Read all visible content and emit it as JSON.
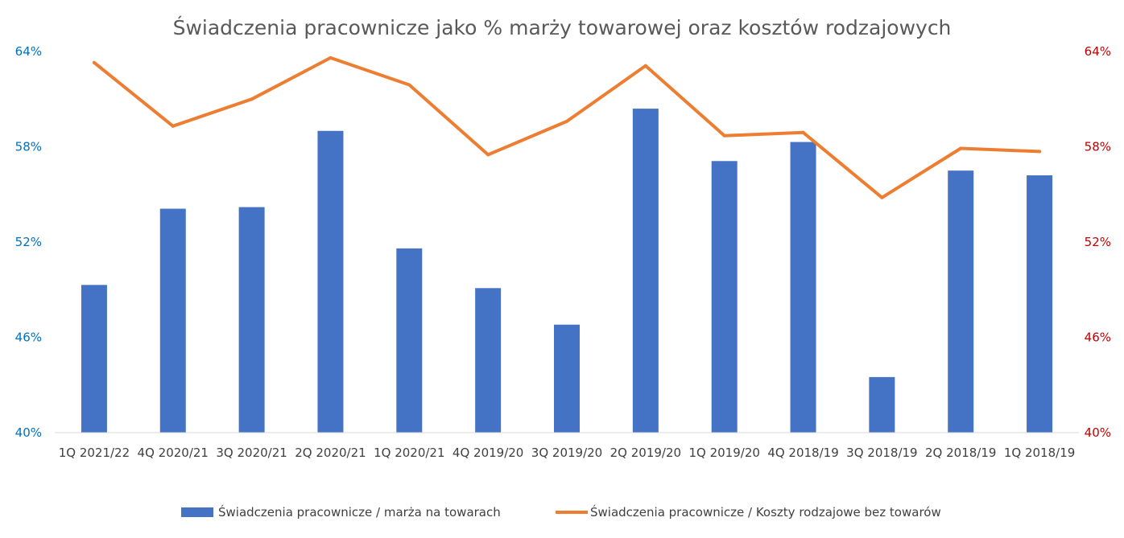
{
  "chart_data": {
    "type": "bar",
    "title": "Świadczenia pracownicze jako % marży towarowej oraz kosztów rodzajowych",
    "categories": [
      "1Q 2021/22",
      "4Q 2020/21",
      "3Q 2020/21",
      "2Q 2020/21",
      "1Q 2020/21",
      "4Q 2019/20",
      "3Q 2019/20",
      "2Q 2019/20",
      "1Q 2019/20",
      "4Q 2018/19",
      "3Q 2018/19",
      "2Q 2018/19",
      "1Q 2018/19"
    ],
    "series": [
      {
        "name": "Świadczenia pracownicze / marża na towarach",
        "type": "bar",
        "axis": "left",
        "color": "#4472C4",
        "values": [
          49.3,
          54.1,
          54.2,
          59.0,
          51.6,
          49.1,
          46.8,
          60.4,
          57.1,
          58.3,
          43.5,
          56.5,
          56.2
        ]
      },
      {
        "name": "Świadczenia pracownicze / Koszty rodzajowe bez towarów",
        "type": "line",
        "axis": "right",
        "color": "#ED7D31",
        "values": [
          63.3,
          59.3,
          61.0,
          63.6,
          61.9,
          57.5,
          59.6,
          63.1,
          58.7,
          58.9,
          54.8,
          57.9,
          57.7
        ]
      }
    ],
    "y_left": {
      "min": 40,
      "max": 64,
      "ticks": [
        "40%",
        "46%",
        "52%",
        "58%",
        "64%"
      ],
      "color": "#0070C0"
    },
    "y_right": {
      "min": 40,
      "max": 64,
      "ticks": [
        "40%",
        "46%",
        "52%",
        "58%",
        "64%"
      ],
      "color": "#C00000"
    },
    "grid": false,
    "legend": "bottom"
  }
}
